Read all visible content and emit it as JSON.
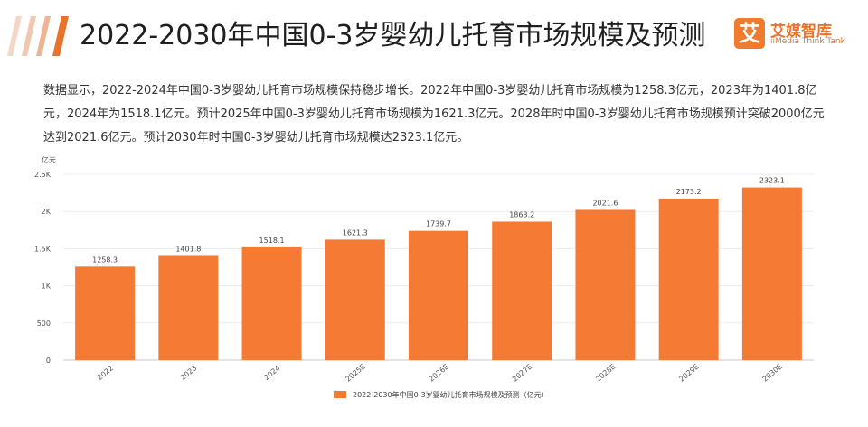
{
  "header": {
    "title": "2022-2030年中国0-3岁婴幼儿托育市场规模及预测",
    "logo_name": "艾媒智库",
    "logo_sub": "iiMedia Think Tank",
    "logo_glyph": "艾",
    "accent": "#f07a2d"
  },
  "description": "数据显示，2022-2024年中国0-3岁婴幼儿托育市场规模保持稳步增长。2022年中国0-3岁婴幼儿托育市场规模为1258.3亿元，2023年为1401.8亿元，2024年为1518.1亿元。预计2025年中国0-3岁婴幼儿托育市场规模为1621.3亿元。2028年时中国0-3岁婴幼儿托育市场规模预计突破2000亿元达到2021.6亿元。预计2030年时中国0-3岁婴幼儿托育市场规模达2323.1亿元。",
  "chart_data": {
    "type": "bar",
    "categories": [
      "2022",
      "2023",
      "2024",
      "2025E",
      "2026E",
      "2027E",
      "2028E",
      "2029E",
      "2030E"
    ],
    "series": [
      {
        "name": "2022-2030年中国0-3岁婴幼儿托育市场规模及预测（亿元）",
        "values": [
          1258.3,
          1401.8,
          1518.1,
          1621.3,
          1739.7,
          1863.2,
          2021.6,
          2173.2,
          2323.1
        ]
      }
    ],
    "data_labels": [
      "1258.3",
      "1401.8",
      "1518.1",
      "1621.3",
      "1739.7",
      "1863.2",
      "2021.6",
      "2173.2",
      "2323.1"
    ],
    "ylabel": "亿元",
    "ylim": [
      0,
      2500
    ],
    "yticks": [
      0,
      500,
      1000,
      1500,
      2000,
      2500
    ],
    "ytick_labels": [
      "0",
      "500",
      "1K",
      "1.5K",
      "2K",
      "2.5K"
    ],
    "grid": true,
    "legend": "bottom-center",
    "bar_color": "#f57a33"
  }
}
